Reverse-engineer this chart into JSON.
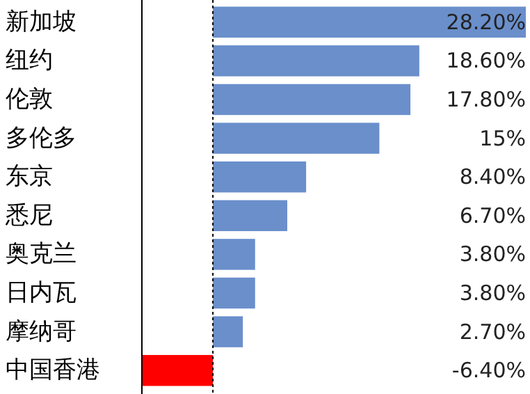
{
  "chart_data": {
    "type": "bar",
    "orientation": "horizontal",
    "categories": [
      "新加坡",
      "纽约",
      "伦敦",
      "多伦多",
      "东京",
      "悉尼",
      "奥克兰",
      "日内瓦",
      "摩纳哥",
      "中国香港"
    ],
    "values": [
      28.2,
      18.6,
      17.8,
      15,
      8.4,
      6.7,
      3.8,
      3.8,
      2.7,
      -6.4
    ],
    "colors": [
      "#6a8fcb",
      "#6a8fcb",
      "#6a8fcb",
      "#6a8fcb",
      "#6a8fcb",
      "#6a8fcb",
      "#6a8fcb",
      "#6a8fcb",
      "#6a8fcb",
      "#ff0000"
    ],
    "value_labels": [
      "28.20%",
      "18.60%",
      "17.80%",
      "15%",
      "8.40%",
      "6.70%",
      "3.80%",
      "3.80%",
      "2.70%",
      "-6.40%"
    ],
    "xlim": [
      -6.4,
      28.2
    ],
    "ref_lines": [
      {
        "axis": "x",
        "value": 0,
        "line_style": "dotted",
        "color": "#000000"
      }
    ],
    "tick_labels": "y"
  }
}
